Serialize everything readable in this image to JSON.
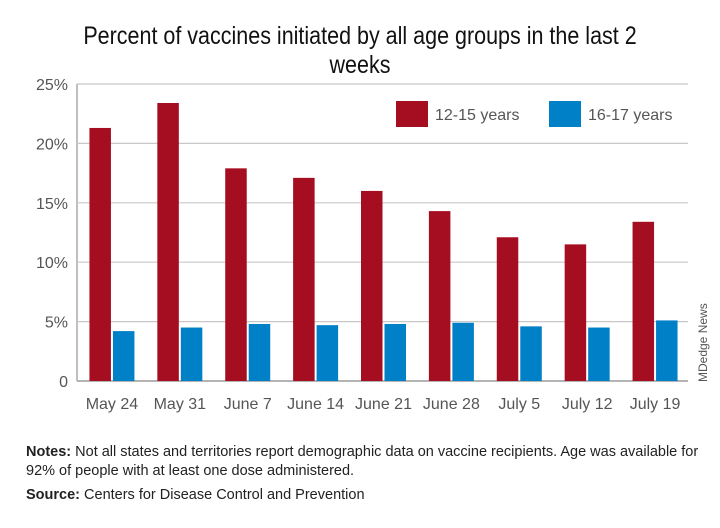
{
  "chart_data": {
    "type": "bar",
    "title": "Percent of vaccines initiated by all age groups in the last 2 weeks",
    "categories": [
      "May 24",
      "May 31",
      "June 7",
      "June 14",
      "June 21",
      "June 28",
      "July 5",
      "July 12",
      "July 19"
    ],
    "series": [
      {
        "name": "12-15 years",
        "color": "#a50d20",
        "values": [
          21.3,
          23.4,
          17.9,
          17.1,
          16.0,
          14.3,
          12.1,
          11.5,
          13.4
        ]
      },
      {
        "name": "16-17 years",
        "color": "#0080c6",
        "values": [
          4.2,
          4.5,
          4.8,
          4.7,
          4.8,
          4.9,
          4.6,
          4.5,
          5.1
        ]
      }
    ],
    "yticks": [
      "0",
      "5%",
      "10%",
      "15%",
      "20%",
      "25%"
    ],
    "ylim": [
      0,
      25
    ],
    "xlabel": "",
    "ylabel": "",
    "legend": "top-right",
    "grid": true
  },
  "notes_label": "Notes:",
  "notes_text": " Not all states and territories report demographic data on vaccine recipients. Age was available for 92% of people with at least one dose administered.",
  "source_label": "Source:",
  "source_text": " Centers for Disease Control and Prevention",
  "credit": "MDedge News"
}
